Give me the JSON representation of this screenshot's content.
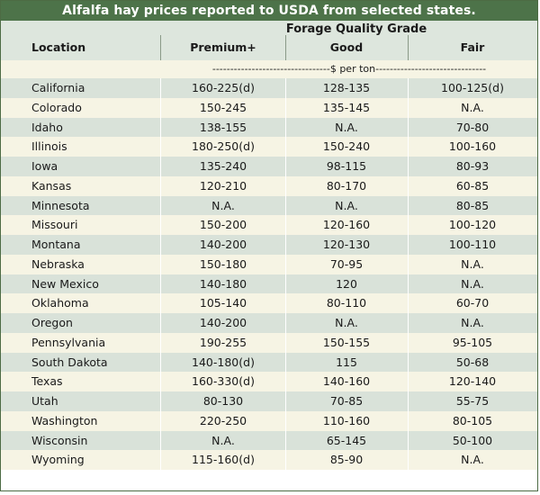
{
  "title": "Alfalfa hay prices reported to USDA from selected states.",
  "header": {
    "grade_title": "Forage Quality Grade",
    "location_label": "Location",
    "columns": [
      "Premium+",
      "Good",
      "Fair"
    ],
    "unit": "---------------------------------$ per ton-------------------------------"
  },
  "rows": [
    {
      "location": "California",
      "premium": "160-225(d)",
      "good": "128-135",
      "fair": "100-125(d)"
    },
    {
      "location": "Colorado",
      "premium": "150-245",
      "good": "135-145",
      "fair": "N.A."
    },
    {
      "location": "Idaho",
      "premium": "138-155",
      "good": "N.A.",
      "fair": "70-80"
    },
    {
      "location": "Illinois",
      "premium": "180-250(d)",
      "good": "150-240",
      "fair": "100-160"
    },
    {
      "location": "Iowa",
      "premium": "135-240",
      "good": "98-115",
      "fair": "80-93"
    },
    {
      "location": "Kansas",
      "premium": "120-210",
      "good": "80-170",
      "fair": "60-85"
    },
    {
      "location": "Minnesota",
      "premium": "N.A.",
      "good": "N.A.",
      "fair": "80-85"
    },
    {
      "location": "Missouri",
      "premium": "150-200",
      "good": "120-160",
      "fair": "100-120"
    },
    {
      "location": "Montana",
      "premium": "140-200",
      "good": "120-130",
      "fair": "100-110"
    },
    {
      "location": "Nebraska",
      "premium": "150-180",
      "good": "70-95",
      "fair": "N.A."
    },
    {
      "location": "New Mexico",
      "premium": "140-180",
      "good": "120",
      "fair": "N.A."
    },
    {
      "location": "Oklahoma",
      "premium": "105-140",
      "good": "80-110",
      "fair": "60-70"
    },
    {
      "location": "Oregon",
      "premium": "140-200",
      "good": "N.A.",
      "fair": "N.A."
    },
    {
      "location": "Pennsylvania",
      "premium": "190-255",
      "good": "150-155",
      "fair": "95-105"
    },
    {
      "location": "South Dakota",
      "premium": "140-180(d)",
      "good": "115",
      "fair": "50-68"
    },
    {
      "location": "Texas",
      "premium": "160-330(d)",
      "good": "140-160",
      "fair": "120-140"
    },
    {
      "location": "Utah",
      "premium": "80-130",
      "good": "70-85",
      "fair": "55-75"
    },
    {
      "location": "Washington",
      "premium": "220-250",
      "good": "110-160",
      "fair": "80-105"
    },
    {
      "location": "Wisconsin",
      "premium": "N.A.",
      "good": "65-145",
      "fair": "50-100"
    },
    {
      "location": "Wyoming",
      "premium": "115-160(d)",
      "good": "85-90",
      "fair": "N.A."
    }
  ],
  "colors": {
    "title_bg": "#4d7349",
    "row_green": "#d9e2d9",
    "row_cream": "#f6f4e4"
  }
}
